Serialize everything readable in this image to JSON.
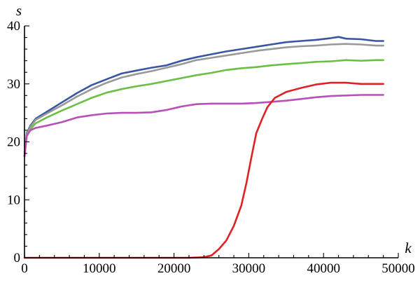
{
  "chart_data": {
    "type": "line",
    "title": "",
    "xlabel": "k",
    "ylabel": "s",
    "xlim": [
      0,
      50000
    ],
    "ylim": [
      0,
      40
    ],
    "x_ticks": [
      0,
      10000,
      20000,
      30000,
      40000,
      50000
    ],
    "x_tick_labels": [
      "0",
      "10000",
      "20000",
      "30000",
      "40000",
      "50000"
    ],
    "y_ticks": [
      0,
      10,
      20,
      30,
      40
    ],
    "y_tick_labels": [
      "0",
      "10",
      "20",
      "30",
      "40"
    ],
    "grid": false,
    "legend": "none",
    "series": [
      {
        "color": "#3a55a4",
        "points": [
          [
            0,
            17.5
          ],
          [
            300,
            21.5
          ],
          [
            800,
            22.8
          ],
          [
            1500,
            24.0
          ],
          [
            3000,
            25.2
          ],
          [
            5000,
            26.8
          ],
          [
            7000,
            28.4
          ],
          [
            9000,
            29.8
          ],
          [
            11000,
            30.8
          ],
          [
            13000,
            31.8
          ],
          [
            15000,
            32.3
          ],
          [
            17000,
            32.8
          ],
          [
            19000,
            33.2
          ],
          [
            21000,
            34.0
          ],
          [
            23000,
            34.6
          ],
          [
            25000,
            35.1
          ],
          [
            27000,
            35.6
          ],
          [
            29000,
            36.0
          ],
          [
            31000,
            36.4
          ],
          [
            33000,
            36.8
          ],
          [
            35000,
            37.2
          ],
          [
            37000,
            37.4
          ],
          [
            39000,
            37.6
          ],
          [
            41000,
            37.9
          ],
          [
            42000,
            38.1
          ],
          [
            43000,
            37.8
          ],
          [
            45000,
            37.7
          ],
          [
            47000,
            37.4
          ],
          [
            48000,
            37.4
          ]
        ]
      },
      {
        "color": "#999999",
        "points": [
          [
            0,
            17.5
          ],
          [
            300,
            21.3
          ],
          [
            800,
            22.6
          ],
          [
            1500,
            23.8
          ],
          [
            3000,
            24.9
          ],
          [
            5000,
            26.3
          ],
          [
            7000,
            27.8
          ],
          [
            9000,
            29.1
          ],
          [
            11000,
            30.2
          ],
          [
            13000,
            31.1
          ],
          [
            15000,
            31.7
          ],
          [
            17000,
            32.2
          ],
          [
            19000,
            32.8
          ],
          [
            21000,
            33.4
          ],
          [
            23000,
            34.1
          ],
          [
            25000,
            34.5
          ],
          [
            27000,
            34.9
          ],
          [
            29000,
            35.3
          ],
          [
            31000,
            35.7
          ],
          [
            33000,
            36.0
          ],
          [
            35000,
            36.3
          ],
          [
            37000,
            36.5
          ],
          [
            39000,
            36.6
          ],
          [
            41000,
            36.8
          ],
          [
            43000,
            36.9
          ],
          [
            45000,
            36.8
          ],
          [
            47000,
            36.6
          ],
          [
            48000,
            36.6
          ]
        ]
      },
      {
        "color": "#6cbf45",
        "points": [
          [
            0,
            17.5
          ],
          [
            300,
            21.0
          ],
          [
            800,
            22.2
          ],
          [
            1500,
            23.2
          ],
          [
            3000,
            24.2
          ],
          [
            5000,
            25.4
          ],
          [
            7000,
            26.5
          ],
          [
            9000,
            27.6
          ],
          [
            11000,
            28.5
          ],
          [
            13000,
            29.1
          ],
          [
            15000,
            29.6
          ],
          [
            17000,
            30.0
          ],
          [
            19000,
            30.5
          ],
          [
            21000,
            31.0
          ],
          [
            23000,
            31.5
          ],
          [
            25000,
            31.9
          ],
          [
            27000,
            32.4
          ],
          [
            29000,
            32.7
          ],
          [
            31000,
            32.9
          ],
          [
            33000,
            33.2
          ],
          [
            35000,
            33.4
          ],
          [
            37000,
            33.6
          ],
          [
            39000,
            33.8
          ],
          [
            41000,
            33.9
          ],
          [
            43000,
            34.1
          ],
          [
            45000,
            34.0
          ],
          [
            47000,
            34.1
          ],
          [
            48000,
            34.1
          ]
        ]
      },
      {
        "color": "#b94fb8",
        "points": [
          [
            0,
            17.5
          ],
          [
            300,
            21.0
          ],
          [
            800,
            22.0
          ],
          [
            1500,
            22.4
          ],
          [
            3000,
            22.8
          ],
          [
            5000,
            23.4
          ],
          [
            7000,
            24.2
          ],
          [
            9000,
            24.6
          ],
          [
            11000,
            24.9
          ],
          [
            13000,
            25.0
          ],
          [
            15000,
            25.0
          ],
          [
            17000,
            25.1
          ],
          [
            19000,
            25.5
          ],
          [
            21000,
            26.1
          ],
          [
            23000,
            26.5
          ],
          [
            25000,
            26.6
          ],
          [
            27000,
            26.6
          ],
          [
            29000,
            26.6
          ],
          [
            31000,
            26.7
          ],
          [
            33000,
            26.9
          ],
          [
            35000,
            27.1
          ],
          [
            37000,
            27.4
          ],
          [
            39000,
            27.7
          ],
          [
            41000,
            27.9
          ],
          [
            43000,
            28.0
          ],
          [
            45000,
            28.1
          ],
          [
            47000,
            28.1
          ],
          [
            48000,
            28.1
          ]
        ]
      },
      {
        "color": "#e02226",
        "points": [
          [
            0,
            0
          ],
          [
            22000,
            0
          ],
          [
            24000,
            0.1
          ],
          [
            25000,
            0.4
          ],
          [
            26000,
            1.5
          ],
          [
            27000,
            3.0
          ],
          [
            28000,
            5.5
          ],
          [
            29000,
            9.0
          ],
          [
            29700,
            13.0
          ],
          [
            30300,
            17.0
          ],
          [
            31000,
            21.5
          ],
          [
            31800,
            24.0
          ],
          [
            32500,
            26.0
          ],
          [
            33500,
            27.6
          ],
          [
            35000,
            28.6
          ],
          [
            37000,
            29.3
          ],
          [
            39000,
            29.9
          ],
          [
            41000,
            30.2
          ],
          [
            43000,
            30.2
          ],
          [
            45000,
            30.0
          ],
          [
            47000,
            30.0
          ],
          [
            48000,
            30.0
          ]
        ]
      }
    ]
  }
}
